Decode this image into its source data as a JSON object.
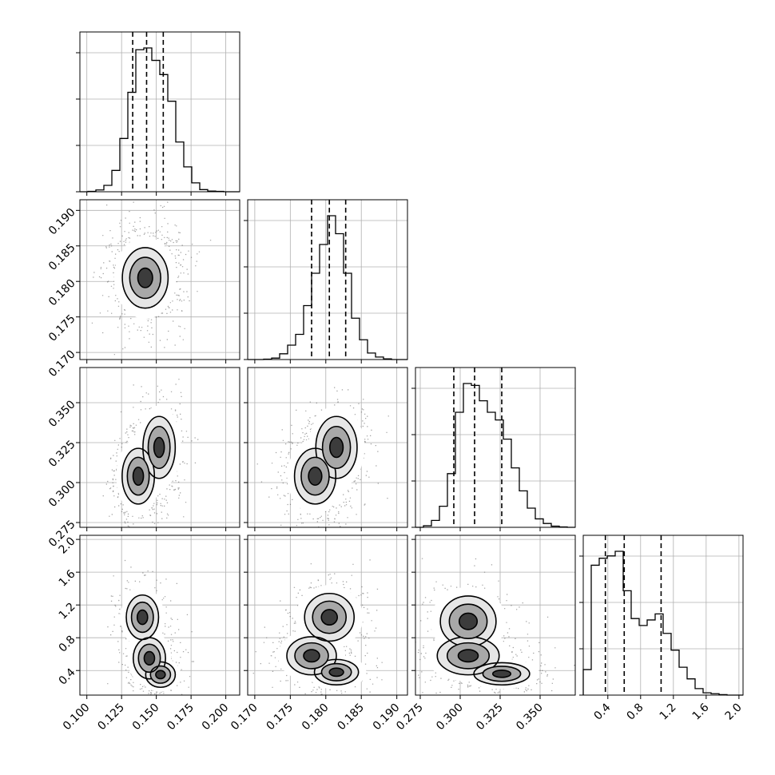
{
  "chart_data": {
    "type": "corner",
    "parameters": [
      {
        "ticks": [
          "0.100",
          "0.125",
          "0.150",
          "0.175",
          "0.200"
        ],
        "range": [
          0.095,
          0.21
        ],
        "median": 0.143,
        "q16": 0.133,
        "q84": 0.155
      },
      {
        "ticks": [
          "0.170",
          "0.175",
          "0.180",
          "0.185",
          "0.190"
        ],
        "range": [
          0.169,
          0.1915
        ],
        "median": 0.1805,
        "q16": 0.178,
        "q84": 0.1828
      },
      {
        "ticks": [
          "0.275",
          "0.300",
          "0.325",
          "0.350"
        ],
        "range": [
          0.272,
          0.372
        ],
        "median": 0.309,
        "q16": 0.296,
        "q84": 0.326
      },
      {
        "ticks": [
          "0.4",
          "0.8",
          "1.2",
          "1.6",
          "2.0"
        ],
        "range": [
          0.1,
          2.05
        ],
        "median": 0.6,
        "q16": 0.37,
        "q84": 1.05
      }
    ],
    "histograms": [
      {
        "edges_from": 0.095,
        "edges_to": 0.21,
        "counts": [
          0,
          1,
          5,
          18,
          60,
          150,
          280,
          400,
          405,
          370,
          330,
          255,
          140,
          70,
          25,
          6,
          2,
          1,
          0,
          0
        ]
      },
      {
        "edges_from": 0.169,
        "edges_to": 0.1915,
        "counts": [
          0,
          0,
          1,
          4,
          16,
          40,
          70,
          150,
          240,
          320,
          400,
          350,
          240,
          115,
          55,
          18,
          7,
          2,
          0,
          0
        ]
      },
      {
        "edges_from": 0.272,
        "edges_to": 0.372,
        "counts": [
          0,
          4,
          18,
          55,
          140,
          300,
          375,
          370,
          330,
          300,
          280,
          230,
          155,
          95,
          50,
          22,
          10,
          3,
          1,
          0
        ]
      },
      {
        "edges_from": 0.1,
        "edges_to": 2.05,
        "counts": [
          55,
          280,
          295,
          300,
          310,
          225,
          165,
          150,
          162,
          175,
          133,
          97,
          60,
          35,
          14,
          5,
          3,
          1,
          0,
          0
        ]
      }
    ],
    "scatter_seed": 7,
    "grid": true,
    "quantile_lines": "dashed"
  }
}
